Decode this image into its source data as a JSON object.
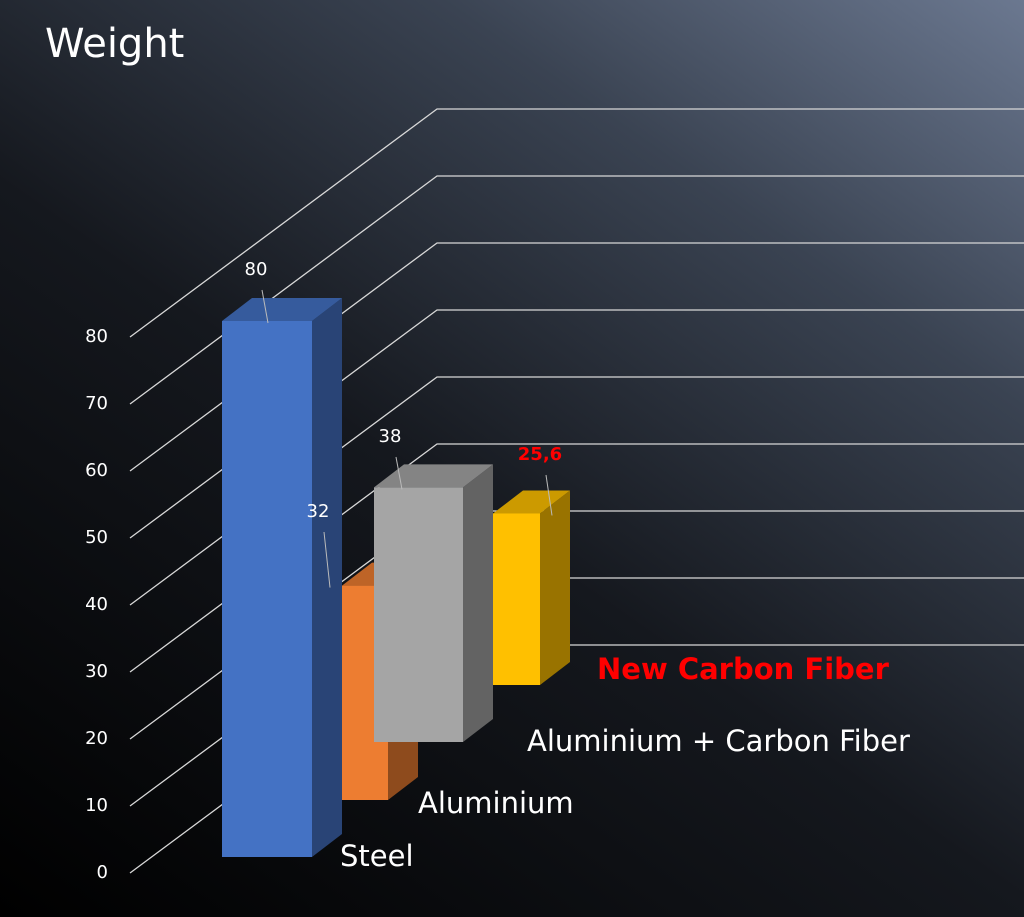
{
  "chart_data": {
    "type": "bar3d",
    "title": "Weight",
    "categories": [
      "Steel",
      "Aluminium",
      "Aluminium + Carbon Fiber",
      "New Carbon Fiber"
    ],
    "values": [
      80,
      32,
      38,
      25.6
    ],
    "value_labels": [
      "80",
      "32",
      "38",
      "25,6"
    ],
    "colors": [
      "#4472c4",
      "#ed7d31",
      "#a5a5a5",
      "#ffc000"
    ],
    "label_colors": [
      "#ffffff",
      "#ffffff",
      "#ffffff",
      "#ff0000"
    ],
    "ylim": [
      0,
      80
    ],
    "yticks": [
      0,
      10,
      20,
      30,
      40,
      50,
      60,
      70,
      80
    ],
    "grid": true
  }
}
